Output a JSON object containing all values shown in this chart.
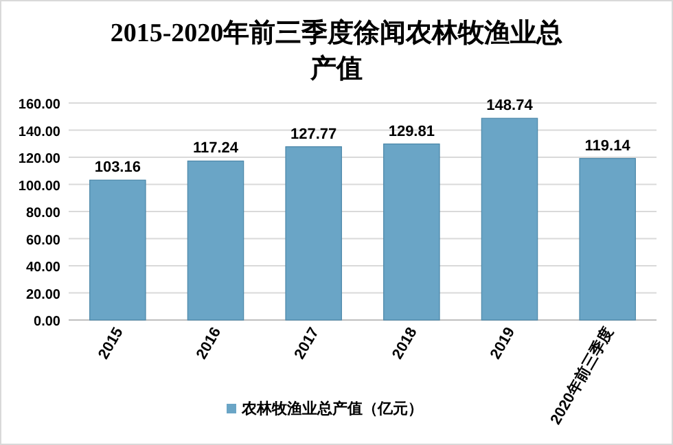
{
  "chart_data": {
    "type": "bar",
    "title": "2015-2020年前三季度徐闻农林牧渔业总产值",
    "categories": [
      "2015",
      "2016",
      "2017",
      "2018",
      "2019",
      "2020年前三季度"
    ],
    "series": [
      {
        "name": "农林牧渔业总产值（亿元）",
        "color": "#6aa5c6",
        "values": [
          103.16,
          117.24,
          127.77,
          129.81,
          148.74,
          119.14
        ]
      }
    ],
    "ylim": [
      0,
      160
    ],
    "yticks": [
      {
        "value": 0,
        "label": "0.00"
      },
      {
        "value": 20,
        "label": "20.00"
      },
      {
        "value": 40,
        "label": "40.00"
      },
      {
        "value": 60,
        "label": "60.00"
      },
      {
        "value": 80,
        "label": "80.00"
      },
      {
        "value": 100,
        "label": "100.00"
      },
      {
        "value": 120,
        "label": "120.00"
      },
      {
        "value": 140,
        "label": "140.00"
      },
      {
        "value": 160,
        "label": "160.00"
      }
    ],
    "grid": "y",
    "legend": "bottom",
    "data_labels": true
  }
}
